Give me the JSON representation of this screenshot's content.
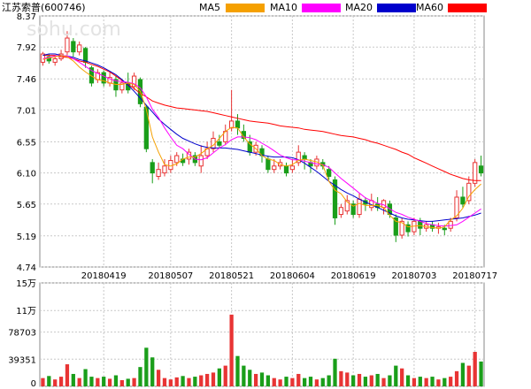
{
  "header": {
    "stock": "江苏索普(600746)",
    "watermark": "sohu.com",
    "legend": [
      {
        "label": "MA5",
        "color": "#f5a000"
      },
      {
        "label": "MA10",
        "color": "#ff00ff"
      },
      {
        "label": "MA20",
        "color": "#0000cc"
      },
      {
        "label": "MA60",
        "color": "#ff0000"
      }
    ]
  },
  "colors": {
    "up": "#e83434",
    "down": "#1a9e1a"
  },
  "chart_data": [
    {
      "type": "candlestick",
      "title": "江苏索普(600746)",
      "ylim": [
        4.74,
        8.37
      ],
      "yticks": [
        "8.37",
        "7.92",
        "7.46",
        "7.01",
        "6.55",
        "6.10",
        "5.65",
        "5.19",
        "4.74"
      ],
      "xticks": [
        {
          "index": 10,
          "label": "20180419"
        },
        {
          "index": 21,
          "label": "20180507"
        },
        {
          "index": 31,
          "label": "20180521"
        },
        {
          "index": 41,
          "label": "20180604"
        },
        {
          "index": 51,
          "label": "20180619"
        },
        {
          "index": 61,
          "label": "20180703"
        },
        {
          "index": 71,
          "label": "20180717"
        }
      ],
      "candles": [
        [
          7.7,
          7.82,
          7.85,
          7.65
        ],
        [
          7.78,
          7.72,
          7.82,
          7.68
        ],
        [
          7.7,
          7.75,
          7.78,
          7.65
        ],
        [
          7.75,
          7.82,
          7.88,
          7.72
        ],
        [
          7.85,
          8.05,
          8.15,
          7.8
        ],
        [
          8.0,
          7.85,
          8.05,
          7.78
        ],
        [
          7.85,
          7.95,
          8.0,
          7.8
        ],
        [
          7.9,
          7.7,
          7.92,
          7.62
        ],
        [
          7.62,
          7.4,
          7.65,
          7.35
        ],
        [
          7.45,
          7.55,
          7.6,
          7.4
        ],
        [
          7.55,
          7.4,
          7.58,
          7.35
        ],
        [
          7.4,
          7.48,
          7.55,
          7.35
        ],
        [
          7.45,
          7.3,
          7.5,
          7.2
        ],
        [
          7.3,
          7.4,
          7.45,
          7.25
        ],
        [
          7.4,
          7.3,
          7.55,
          7.25
        ],
        [
          7.35,
          7.5,
          7.55,
          7.3
        ],
        [
          7.45,
          7.1,
          7.48,
          7.05
        ],
        [
          7.05,
          6.45,
          7.08,
          6.4
        ],
        [
          6.25,
          6.1,
          6.3,
          5.95
        ],
        [
          6.05,
          6.15,
          6.25,
          6.0
        ],
        [
          6.1,
          6.2,
          6.3,
          6.05
        ],
        [
          6.15,
          6.28,
          6.35,
          6.1
        ],
        [
          6.25,
          6.35,
          6.4,
          6.2
        ],
        [
          6.3,
          6.25,
          6.38,
          6.2
        ],
        [
          6.3,
          6.4,
          6.45,
          6.22
        ],
        [
          6.35,
          6.25,
          6.4,
          6.2
        ],
        [
          6.2,
          6.35,
          6.5,
          6.1
        ],
        [
          6.35,
          6.45,
          6.55,
          6.3
        ],
        [
          6.45,
          6.6,
          6.7,
          6.4
        ],
        [
          6.55,
          6.5,
          6.65,
          6.45
        ],
        [
          6.55,
          6.7,
          6.8,
          6.5
        ],
        [
          6.75,
          6.85,
          7.3,
          6.7
        ],
        [
          6.85,
          6.75,
          6.95,
          6.65
        ],
        [
          6.7,
          6.6,
          6.8,
          6.55
        ],
        [
          6.55,
          6.4,
          6.65,
          6.35
        ],
        [
          6.4,
          6.5,
          6.55,
          6.35
        ],
        [
          6.45,
          6.35,
          6.5,
          6.25
        ],
        [
          6.3,
          6.15,
          6.35,
          6.1
        ],
        [
          6.15,
          6.2,
          6.3,
          6.1
        ],
        [
          6.2,
          6.25,
          6.3,
          6.15
        ],
        [
          6.2,
          6.1,
          6.25,
          6.05
        ],
        [
          6.15,
          6.2,
          6.3,
          6.1
        ],
        [
          6.25,
          6.4,
          6.5,
          6.2
        ],
        [
          6.35,
          6.3,
          6.4,
          6.15
        ],
        [
          6.25,
          6.2,
          6.3,
          6.1
        ],
        [
          6.2,
          6.3,
          6.35,
          6.15
        ],
        [
          6.25,
          6.2,
          6.3,
          6.15
        ],
        [
          6.15,
          6.05,
          6.2,
          6.0
        ],
        [
          6.0,
          5.45,
          6.05,
          5.35
        ],
        [
          5.5,
          5.6,
          5.65,
          5.45
        ],
        [
          5.55,
          5.7,
          5.78,
          5.5
        ],
        [
          5.65,
          5.5,
          5.7,
          5.45
        ],
        [
          5.5,
          5.72,
          5.8,
          5.45
        ],
        [
          5.7,
          5.65,
          5.75,
          5.55
        ],
        [
          5.6,
          5.7,
          5.8,
          5.55
        ],
        [
          5.65,
          5.6,
          5.75,
          5.55
        ],
        [
          5.6,
          5.7,
          5.72,
          5.5
        ],
        [
          5.65,
          5.5,
          5.7,
          5.45
        ],
        [
          5.45,
          5.2,
          5.5,
          5.1
        ],
        [
          5.2,
          5.4,
          5.45,
          5.15
        ],
        [
          5.35,
          5.25,
          5.4,
          5.18
        ],
        [
          5.25,
          5.4,
          5.45,
          5.2
        ],
        [
          5.4,
          5.3,
          5.45,
          5.2
        ],
        [
          5.3,
          5.35,
          5.4,
          5.25
        ],
        [
          5.35,
          5.3,
          5.4,
          5.25
        ],
        [
          5.3,
          5.32,
          5.38,
          5.22
        ],
        [
          5.3,
          5.28,
          5.35,
          5.2
        ],
        [
          5.3,
          5.4,
          5.45,
          5.25
        ],
        [
          5.45,
          5.75,
          5.85,
          5.4
        ],
        [
          5.75,
          5.65,
          5.9,
          5.6
        ],
        [
          5.7,
          5.95,
          6.05,
          5.65
        ],
        [
          5.95,
          6.25,
          6.3,
          5.9
        ],
        [
          6.2,
          6.1,
          6.35,
          6.05
        ]
      ],
      "ma5": [
        7.74,
        7.76,
        7.78,
        7.8,
        7.78,
        7.72,
        7.63,
        7.56,
        7.5,
        7.45,
        7.43,
        7.4,
        7.38,
        7.38,
        7.4,
        7.38,
        7.28,
        7.02,
        6.62,
        6.4,
        6.22,
        6.2,
        6.23,
        6.3,
        6.33,
        6.33,
        6.38,
        6.45,
        6.5,
        6.6,
        6.7,
        6.76,
        6.75,
        6.62,
        6.52,
        6.45,
        6.35,
        6.3,
        6.28,
        6.22,
        6.2,
        6.22,
        6.28,
        6.3,
        6.28,
        6.26,
        6.21,
        5.98,
        5.85,
        5.8,
        5.68,
        5.62,
        5.66,
        5.63,
        5.63,
        5.63,
        5.6,
        5.49,
        5.4,
        5.38,
        5.32,
        5.33,
        5.34,
        5.32,
        5.31,
        5.3,
        5.32,
        5.42,
        5.48,
        5.59,
        5.76,
        5.86,
        5.94
      ],
      "ma10": [
        7.75,
        7.77,
        7.79,
        7.8,
        7.79,
        7.75,
        7.7,
        7.64,
        7.58,
        7.54,
        7.5,
        7.46,
        7.43,
        7.42,
        7.41,
        7.39,
        7.33,
        7.2,
        7.02,
        6.9,
        6.75,
        6.62,
        6.5,
        6.45,
        6.37,
        6.3,
        6.29,
        6.32,
        6.39,
        6.46,
        6.51,
        6.58,
        6.62,
        6.62,
        6.61,
        6.58,
        6.53,
        6.48,
        6.42,
        6.36,
        6.32,
        6.29,
        6.29,
        6.27,
        6.25,
        6.23,
        6.22,
        6.18,
        6.1,
        6.02,
        5.95,
        5.88,
        5.81,
        5.74,
        5.7,
        5.66,
        5.64,
        5.58,
        5.53,
        5.5,
        5.46,
        5.43,
        5.4,
        5.37,
        5.35,
        5.34,
        5.33,
        5.34,
        5.35,
        5.4,
        5.46,
        5.52,
        5.58
      ],
      "ma20": [
        7.8,
        7.82,
        7.82,
        7.8,
        7.79,
        7.77,
        7.74,
        7.72,
        7.69,
        7.66,
        7.62,
        7.57,
        7.52,
        7.45,
        7.37,
        7.28,
        7.18,
        7.08,
        6.98,
        6.88,
        6.8,
        6.73,
        6.66,
        6.6,
        6.56,
        6.52,
        6.49,
        6.47,
        6.46,
        6.46,
        6.46,
        6.45,
        6.44,
        6.42,
        6.4,
        6.38,
        6.36,
        6.34,
        6.33,
        6.33,
        6.33,
        6.32,
        6.29,
        6.24,
        6.18,
        6.12,
        6.05,
        5.98,
        5.92,
        5.86,
        5.81,
        5.77,
        5.72,
        5.68,
        5.64,
        5.6,
        5.56,
        5.52,
        5.48,
        5.45,
        5.43,
        5.42,
        5.41,
        5.4,
        5.4,
        5.41,
        5.42,
        5.43,
        5.44,
        5.45,
        5.47,
        5.49,
        5.52
      ],
      "ma60": [
        7.8,
        7.8,
        7.8,
        7.78,
        7.77,
        7.75,
        7.72,
        7.7,
        7.67,
        7.64,
        7.6,
        7.56,
        7.5,
        7.44,
        7.38,
        7.32,
        7.25,
        7.2,
        7.14,
        7.11,
        7.08,
        7.06,
        7.04,
        7.03,
        7.02,
        7.01,
        7.0,
        6.99,
        6.97,
        6.95,
        6.93,
        6.91,
        6.89,
        6.87,
        6.85,
        6.84,
        6.83,
        6.82,
        6.8,
        6.78,
        6.77,
        6.76,
        6.75,
        6.73,
        6.72,
        6.71,
        6.7,
        6.68,
        6.66,
        6.64,
        6.63,
        6.62,
        6.6,
        6.58,
        6.55,
        6.53,
        6.5,
        6.47,
        6.44,
        6.4,
        6.37,
        6.32,
        6.28,
        6.24,
        6.2,
        6.16,
        6.12,
        6.08,
        6.05,
        6.02,
        6.0,
        5.99,
        5.99
      ]
    },
    {
      "type": "bar",
      "title": "volume",
      "ylim": [
        0,
        150000
      ],
      "yticks": [
        {
          "value": 150000,
          "label": "15万"
        },
        {
          "value": 110000,
          "label": "11万"
        },
        {
          "value": 78703,
          "label": "78703"
        },
        {
          "value": 39351,
          "label": "39351"
        },
        {
          "value": 0,
          "label": "0"
        }
      ],
      "values": [
        12000,
        15000,
        10000,
        14000,
        32000,
        18000,
        12000,
        25000,
        14000,
        12000,
        14000,
        11000,
        16000,
        9000,
        11000,
        12000,
        28000,
        56000,
        42000,
        24000,
        12000,
        10000,
        13000,
        15000,
        12000,
        14000,
        16000,
        18000,
        20000,
        26000,
        30000,
        104000,
        44000,
        30000,
        24000,
        18000,
        20000,
        16000,
        12000,
        10000,
        14000,
        12000,
        18000,
        12000,
        14000,
        10000,
        12000,
        16000,
        40000,
        22000,
        20000,
        16000,
        18000,
        14000,
        16000,
        18000,
        12000,
        16000,
        30000,
        26000,
        16000,
        12000,
        14000,
        12000,
        14000,
        10000,
        12000,
        14000,
        22000,
        34000,
        30000,
        50000,
        36000
      ]
    }
  ]
}
